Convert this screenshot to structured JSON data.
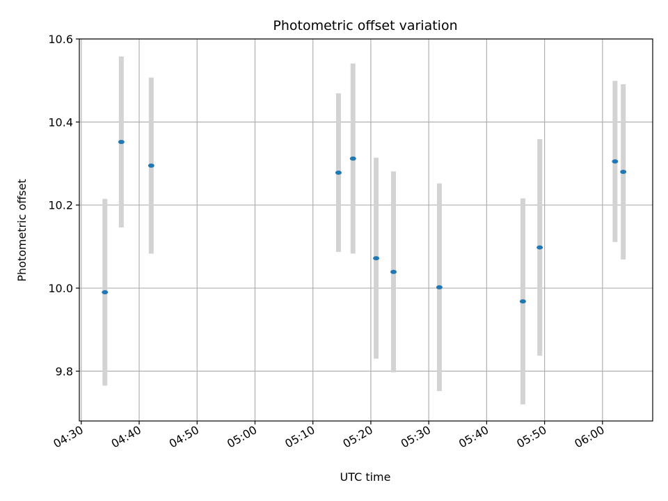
{
  "chart_data": {
    "type": "scatter",
    "title": "Photometric offset variation",
    "xlabel": "UTC time",
    "ylabel": "Photometric offset",
    "x_tick_labels": [
      "04:30",
      "04:40",
      "04:50",
      "05:00",
      "05:10",
      "05:20",
      "05:30",
      "05:40",
      "05:50",
      "06:00"
    ],
    "y_tick_labels": [
      "9.8",
      "10.0",
      "10.2",
      "10.4",
      "10.6"
    ],
    "y_ticks": [
      9.8,
      10.0,
      10.2,
      10.4,
      10.6
    ],
    "x_ticks": [
      "04:30",
      "04:40",
      "04:50",
      "05:00",
      "05:10",
      "05:20",
      "05:30",
      "05:40",
      "05:50",
      "06:00"
    ],
    "xlim": [
      "04:29:40",
      "06:08:40"
    ],
    "ylim": [
      9.68,
      10.6
    ],
    "grid": true,
    "colors": {
      "point": "#1f77b4",
      "errorbar": "#d3d3d3",
      "grid": "#b0b0b0"
    },
    "points": [
      {
        "time": "04:34:05",
        "y": 9.99,
        "ymin": 9.765,
        "ymax": 10.215
      },
      {
        "time": "04:36:55",
        "y": 10.352,
        "ymin": 10.146,
        "ymax": 10.558
      },
      {
        "time": "04:42:05",
        "y": 10.295,
        "ymin": 10.083,
        "ymax": 10.507
      },
      {
        "time": "05:14:25",
        "y": 10.278,
        "ymin": 10.087,
        "ymax": 10.469
      },
      {
        "time": "05:16:55",
        "y": 10.312,
        "ymin": 10.083,
        "ymax": 10.541
      },
      {
        "time": "05:20:55",
        "y": 10.072,
        "ymin": 9.83,
        "ymax": 10.314
      },
      {
        "time": "05:23:55",
        "y": 10.039,
        "ymin": 9.797,
        "ymax": 10.281
      },
      {
        "time": "05:31:50",
        "y": 10.002,
        "ymin": 9.752,
        "ymax": 10.252
      },
      {
        "time": "05:46:15",
        "y": 9.968,
        "ymin": 9.72,
        "ymax": 10.216
      },
      {
        "time": "05:49:10",
        "y": 10.098,
        "ymin": 9.837,
        "ymax": 10.359
      },
      {
        "time": "06:02:10",
        "y": 10.305,
        "ymin": 10.111,
        "ymax": 10.499
      },
      {
        "time": "06:03:35",
        "y": 10.28,
        "ymin": 10.069,
        "ymax": 10.491
      }
    ]
  }
}
